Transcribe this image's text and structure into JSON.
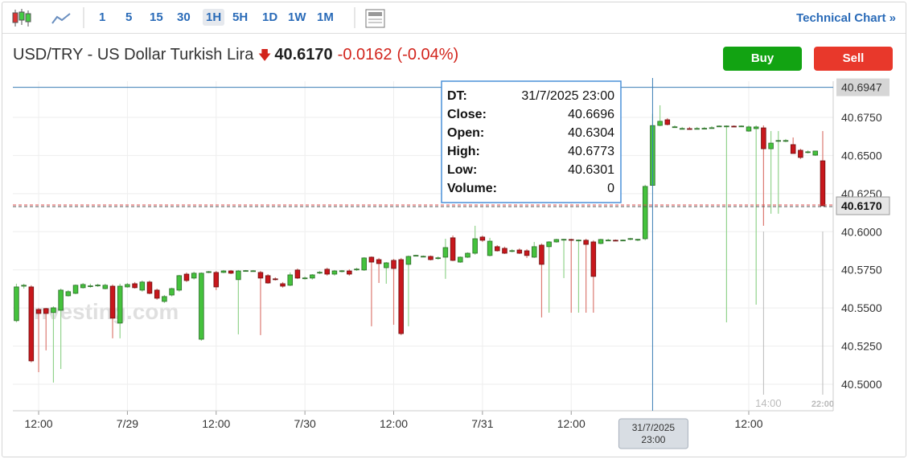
{
  "toolbar": {
    "intervals": [
      "1",
      "5",
      "15",
      "30",
      "1H",
      "5H",
      "1D",
      "1W",
      "1M"
    ],
    "selected": "1H",
    "link": "Technical Chart »"
  },
  "header": {
    "instrument": "USD/TRY - US Dollar Turkish Lira",
    "price": "40.6170",
    "change": "-0.0162",
    "change_percent": "(-0.04%)"
  },
  "buttons": {
    "buy": "Buy",
    "sell": "Sell"
  },
  "chart_data": {
    "type": "candlestick",
    "watermark": "Investing.com",
    "up_color": "#45c23d",
    "down_color": "#c8171c",
    "x": [
      "28/7/2025 09:00",
      "28/7/2025 10:00",
      "28/7/2025 11:00",
      "28/7/2025 12:00",
      "28/7/2025 13:00",
      "28/7/2025 14:00",
      "28/7/2025 15:00",
      "28/7/2025 16:00",
      "28/7/2025 17:00",
      "28/7/2025 18:00",
      "28/7/2025 19:00",
      "28/7/2025 20:00",
      "28/7/2025 21:00",
      "28/7/2025 22:00",
      "28/7/2025 23:00",
      "29/7/2025 00:00",
      "29/7/2025 01:00",
      "29/7/2025 02:00",
      "29/7/2025 03:00",
      "29/7/2025 04:00",
      "29/7/2025 05:00",
      "29/7/2025 06:00",
      "29/7/2025 07:00",
      "29/7/2025 08:00",
      "29/7/2025 09:00",
      "29/7/2025 10:00",
      "29/7/2025 11:00",
      "29/7/2025 12:00",
      "29/7/2025 13:00",
      "29/7/2025 14:00",
      "29/7/2025 15:00",
      "29/7/2025 16:00",
      "29/7/2025 17:00",
      "29/7/2025 18:00",
      "29/7/2025 19:00",
      "29/7/2025 20:00",
      "29/7/2025 21:00",
      "29/7/2025 22:00",
      "29/7/2025 23:00",
      "30/7/2025 00:00",
      "30/7/2025 01:00",
      "30/7/2025 02:00",
      "30/7/2025 03:00",
      "30/7/2025 04:00",
      "30/7/2025 05:00",
      "30/7/2025 06:00",
      "30/7/2025 07:00",
      "30/7/2025 08:00",
      "30/7/2025 09:00",
      "30/7/2025 10:00",
      "30/7/2025 11:00",
      "30/7/2025 12:00",
      "30/7/2025 13:00",
      "30/7/2025 14:00",
      "30/7/2025 15:00",
      "30/7/2025 16:00",
      "30/7/2025 17:00",
      "30/7/2025 18:00",
      "30/7/2025 19:00",
      "30/7/2025 20:00",
      "30/7/2025 21:00",
      "30/7/2025 22:00",
      "30/7/2025 23:00",
      "31/7/2025 00:00",
      "31/7/2025 01:00",
      "31/7/2025 02:00",
      "31/7/2025 03:00",
      "31/7/2025 04:00",
      "31/7/2025 05:00",
      "31/7/2025 06:00",
      "31/7/2025 07:00",
      "31/7/2025 08:00",
      "31/7/2025 09:00",
      "31/7/2025 10:00",
      "31/7/2025 11:00",
      "31/7/2025 12:00",
      "31/7/2025 13:00",
      "31/7/2025 14:00",
      "31/7/2025 15:00",
      "31/7/2025 16:00",
      "31/7/2025 17:00",
      "31/7/2025 18:00",
      "31/7/2025 19:00",
      "31/7/2025 20:00",
      "31/7/2025 21:00",
      "31/7/2025 22:00",
      "31/7/2025 23:00",
      "1/8/2025 00:00",
      "1/8/2025 01:00",
      "1/8/2025 02:00",
      "1/8/2025 03:00",
      "1/8/2025 04:00",
      "1/8/2025 05:00",
      "1/8/2025 06:00",
      "1/8/2025 07:00",
      "1/8/2025 08:00",
      "1/8/2025 09:00",
      "1/8/2025 10:00",
      "1/8/2025 11:00",
      "1/8/2025 12:00",
      "1/8/2025 13:00",
      "1/8/2025 14:00",
      "1/8/2025 15:00",
      "1/8/2025 16:00",
      "1/8/2025 17:00",
      "1/8/2025 18:00",
      "1/8/2025 19:00",
      "1/8/2025 20:00",
      "1/8/2025 21:00",
      "1/8/2025 22:00"
    ],
    "open": [
      40.5417,
      40.5643,
      40.5638,
      40.549,
      40.5496,
      40.547,
      40.5485,
      40.558,
      40.5596,
      40.5633,
      40.5643,
      40.5649,
      40.5627,
      40.5643,
      40.5401,
      40.5638,
      40.5659,
      40.5617,
      40.567,
      40.5617,
      40.5543,
      40.5585,
      40.5617,
      40.5722,
      40.5696,
      40.5295,
      40.5733,
      40.5733,
      40.5733,
      40.5743,
      40.5686,
      40.5743,
      40.5743,
      40.5733,
      40.5712,
      40.5691,
      40.5659,
      40.5649,
      40.5749,
      40.5696,
      40.5696,
      40.5733,
      40.5754,
      40.5722,
      40.5743,
      40.5743,
      40.5754,
      40.5749,
      40.5833,
      40.5817,
      40.5764,
      40.5812,
      40.5817,
      40.5786,
      40.5844,
      40.5838,
      40.5838,
      40.5828,
      40.5833,
      40.596,
      40.5801,
      40.5833,
      40.5859,
      40.5965,
      40.5844,
      40.5902,
      40.5891,
      40.5875,
      40.588,
      40.5875,
      40.5833,
      40.5912,
      40.5902,
      40.5933,
      40.5949,
      40.5949,
      40.5944,
      40.5944,
      40.5933,
      40.5923,
      40.5944,
      40.5944,
      40.5944,
      40.5954,
      40.5949,
      40.5954,
      40.6304,
      40.6697,
      40.6734,
      40.6687,
      40.6676,
      40.6676,
      40.6676,
      40.6676,
      40.6681,
      40.6692,
      40.6692,
      40.6692,
      40.6692,
      40.666,
      40.6676,
      40.6681,
      40.6544,
      40.6597,
      40.6597,
      40.6571,
      40.6534,
      40.6523,
      40.6502,
      40.6465
    ],
    "high": [
      40.5659,
      40.5659,
      40.5649,
      40.5501,
      40.5501,
      40.5511,
      40.5627,
      40.5617,
      40.5654,
      40.5664,
      40.5659,
      40.5659,
      40.5659,
      40.5654,
      40.5659,
      40.5664,
      40.567,
      40.568,
      40.568,
      40.5627,
      40.5585,
      40.5633,
      40.5717,
      40.5733,
      40.5738,
      40.5733,
      40.5743,
      40.5743,
      40.5749,
      40.5749,
      40.5749,
      40.5749,
      40.5749,
      40.5743,
      40.5722,
      40.5701,
      40.567,
      40.5733,
      40.5759,
      40.5707,
      40.5722,
      40.5743,
      40.5764,
      40.5749,
      40.5749,
      40.5754,
      40.5764,
      40.5833,
      40.5838,
      40.5828,
      40.5801,
      40.5822,
      40.5828,
      40.5844,
      40.5849,
      40.5844,
      40.5844,
      40.5838,
      40.5954,
      40.5975,
      40.5838,
      40.5865,
      40.6039,
      40.5975,
      40.596,
      40.5912,
      40.5902,
      40.5886,
      40.5891,
      40.5886,
      40.5933,
      40.5923,
      40.5938,
      40.5954,
      40.5954,
      40.5954,
      40.5949,
      40.5954,
      40.5944,
      40.5954,
      40.5954,
      40.5949,
      40.5949,
      40.596,
      40.5954,
      40.6308,
      40.6773,
      40.6829,
      40.6745,
      40.6697,
      40.6687,
      40.6687,
      40.6687,
      40.6687,
      40.6692,
      40.6697,
      40.6697,
      40.6697,
      40.6697,
      40.6697,
      40.6697,
      40.6697,
      40.666,
      40.666,
      40.6608,
      40.6618,
      40.6544,
      40.6534,
      40.6529,
      40.666
    ],
    "low": [
      40.5406,
      40.5627,
      40.5143,
      40.5079,
      40.5222,
      40.5011,
      40.51,
      40.5575,
      40.559,
      40.5627,
      40.5633,
      40.5638,
      40.5622,
      40.5301,
      40.5301,
      40.5633,
      40.5627,
      40.5607,
      40.559,
      40.5554,
      40.5533,
      40.5575,
      40.5607,
      40.567,
      40.5686,
      40.5285,
      40.5728,
      40.5617,
      40.5728,
      40.5722,
      40.5327,
      40.5738,
      40.5738,
      40.5322,
      40.5659,
      40.568,
      40.5633,
      40.5643,
      40.569,
      40.5686,
      40.5686,
      40.5722,
      40.5712,
      40.5712,
      40.5733,
      40.5712,
      40.5743,
      40.5743,
      40.538,
      40.5664,
      40.5659,
      40.539,
      40.5322,
      40.538,
      40.5838,
      40.5833,
      40.5812,
      40.5817,
      40.5691,
      40.5807,
      40.5796,
      40.5828,
      40.5849,
      40.5933,
      40.5838,
      40.587,
      40.5854,
      40.5865,
      40.5854,
      40.5828,
      40.5828,
      40.5438,
      40.5469,
      40.5928,
      40.5696,
      40.5469,
      40.5469,
      40.5469,
      40.5469,
      40.5917,
      40.5938,
      40.5938,
      40.5938,
      40.5944,
      40.5938,
      40.5944,
      40.6301,
      40.6692,
      40.6697,
      40.6681,
      40.6671,
      40.6671,
      40.6671,
      40.6671,
      40.6676,
      40.6687,
      40.5406,
      40.6687,
      40.6687,
      40.6655,
      40.5522,
      40.6039,
      40.6118,
      40.6118,
      40.6587,
      40.6513,
      40.6476,
      40.6513,
      40.6497,
      40.617
    ],
    "close": [
      40.5638,
      40.5649,
      40.5153,
      40.5464,
      40.5464,
      40.5501,
      40.5617,
      40.5607,
      40.5649,
      40.5654,
      40.5645,
      40.565,
      40.5649,
      40.5433,
      40.5643,
      40.5654,
      40.5633,
      40.567,
      40.5596,
      40.5564,
      40.5575,
      40.5627,
      40.5712,
      40.568,
      40.5728,
      40.5728,
      40.5738,
      40.5638,
      40.5743,
      40.5728,
      40.5743,
      40.5745,
      40.5744,
      40.5696,
      40.5664,
      40.569,
      40.5643,
      40.5717,
      40.5696,
      40.5697,
      40.5717,
      40.5734,
      40.5722,
      40.5743,
      40.5744,
      40.5722,
      40.5755,
      40.5828,
      40.5801,
      40.5791,
      40.5796,
      40.5759,
      40.5332,
      40.5838,
      40.5845,
      40.5839,
      40.5817,
      40.5829,
      40.5896,
      40.5812,
      40.5833,
      40.5859,
      40.5954,
      40.5944,
      40.5938,
      40.5875,
      40.5859,
      40.5876,
      40.5859,
      40.5844,
      40.5902,
      40.5786,
      40.5933,
      40.5949,
      40.595,
      40.5948,
      40.5945,
      40.5917,
      40.5707,
      40.5949,
      40.5945,
      40.5943,
      40.5945,
      40.5955,
      40.595,
      40.6297,
      40.6696,
      40.6724,
      40.6703,
      40.6688,
      40.6677,
      40.6675,
      40.6677,
      40.6678,
      40.6682,
      40.6693,
      40.6693,
      40.6691,
      40.6693,
      40.6687,
      40.6687,
      40.6544,
      40.6581,
      40.6598,
      40.6598,
      40.6513,
      40.6487,
      40.6524,
      40.6529,
      40.617
    ],
    "xlim": [
      "28/7/2025 08:31",
      "1/8/2025 23:25"
    ],
    "xticks": [
      {
        "value": "28/7/2025 12:00",
        "label": "12:00"
      },
      {
        "value": "29/7/2025 00:00",
        "label": "7/29"
      },
      {
        "value": "29/7/2025 12:00",
        "label": "12:00"
      },
      {
        "value": "30/7/2025 00:00",
        "label": "7/30"
      },
      {
        "value": "30/7/2025 12:00",
        "label": "12:00"
      },
      {
        "value": "31/7/2025 00:00",
        "label": "7/31"
      },
      {
        "value": "31/7/2025 12:00",
        "label": "12:00"
      },
      {
        "value": "1/8/2025 12:00",
        "label": "12:00"
      }
    ],
    "ylim": [
      40.4826,
      40.6987
    ],
    "yticks": [
      {
        "value": 40.5,
        "label": "40.5000"
      },
      {
        "value": 40.525,
        "label": "40.5250"
      },
      {
        "value": 40.55,
        "label": "40.5500"
      },
      {
        "value": 40.575,
        "label": "40.5750"
      },
      {
        "value": 40.6,
        "label": "40.6000"
      },
      {
        "value": 40.625,
        "label": "40.6250"
      },
      {
        "value": 40.65,
        "label": "40.6500"
      },
      {
        "value": 40.675,
        "label": "40.6750"
      }
    ],
    "grid": true,
    "last_price": {
      "value": 40.617,
      "label": "40.6170"
    },
    "crosshair": {
      "x": "31/7/2025 23:00",
      "price": 40.6947
    },
    "tooltip": {
      "labels": [
        "DT:",
        "Close:",
        "Open:",
        "High:",
        "Low:",
        "Volume:"
      ],
      "volume": 0
    },
    "time_markers": [
      {
        "x": "1/8/2025 14:00",
        "label": "14:00"
      },
      {
        "x": "1/8/2025 22:00",
        "label": "22:00"
      }
    ]
  }
}
